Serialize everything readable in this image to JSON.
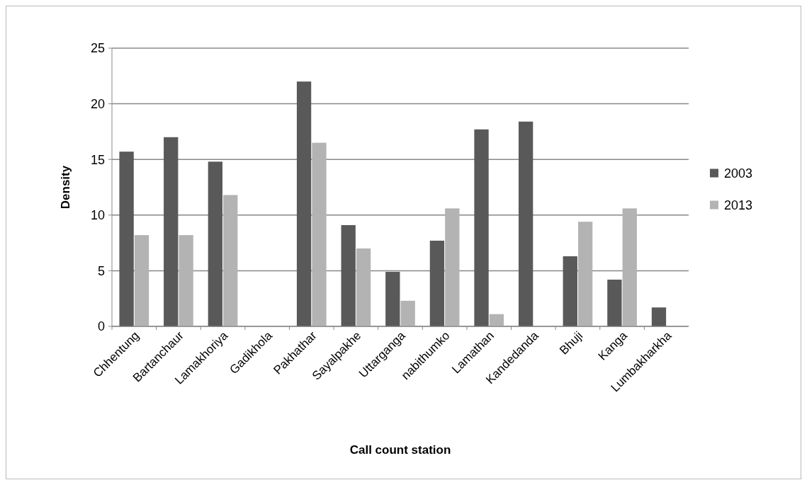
{
  "chart_data": {
    "type": "bar",
    "xlabel": "Call count station",
    "ylabel": "Density",
    "categories": [
      "Chhentung",
      "Bartanchaur",
      "Lamakhoriya",
      "Gadikhola",
      "Pakhathar",
      "Sayalpakhe",
      "Uttarganga",
      "nabithumko",
      "Lamathan",
      "Kandedanda",
      "Bhuji",
      "Kanga",
      "Lumbakharkha"
    ],
    "series": [
      {
        "name": "2003",
        "color": "#595959",
        "values": [
          15.7,
          17,
          14.8,
          0,
          22,
          9.1,
          4.9,
          7.7,
          17.7,
          18.4,
          6.3,
          4.2,
          1.7
        ]
      },
      {
        "name": "2013",
        "color": "#b3b3b3",
        "values": [
          8.2,
          8.2,
          11.8,
          0,
          16.5,
          7,
          2.3,
          10.6,
          1.1,
          0,
          9.4,
          10.6,
          0
        ]
      }
    ],
    "ylim": [
      0,
      25
    ],
    "yticks": [
      0,
      5,
      10,
      15,
      20,
      25
    ],
    "grid": "y",
    "legend": "right"
  }
}
